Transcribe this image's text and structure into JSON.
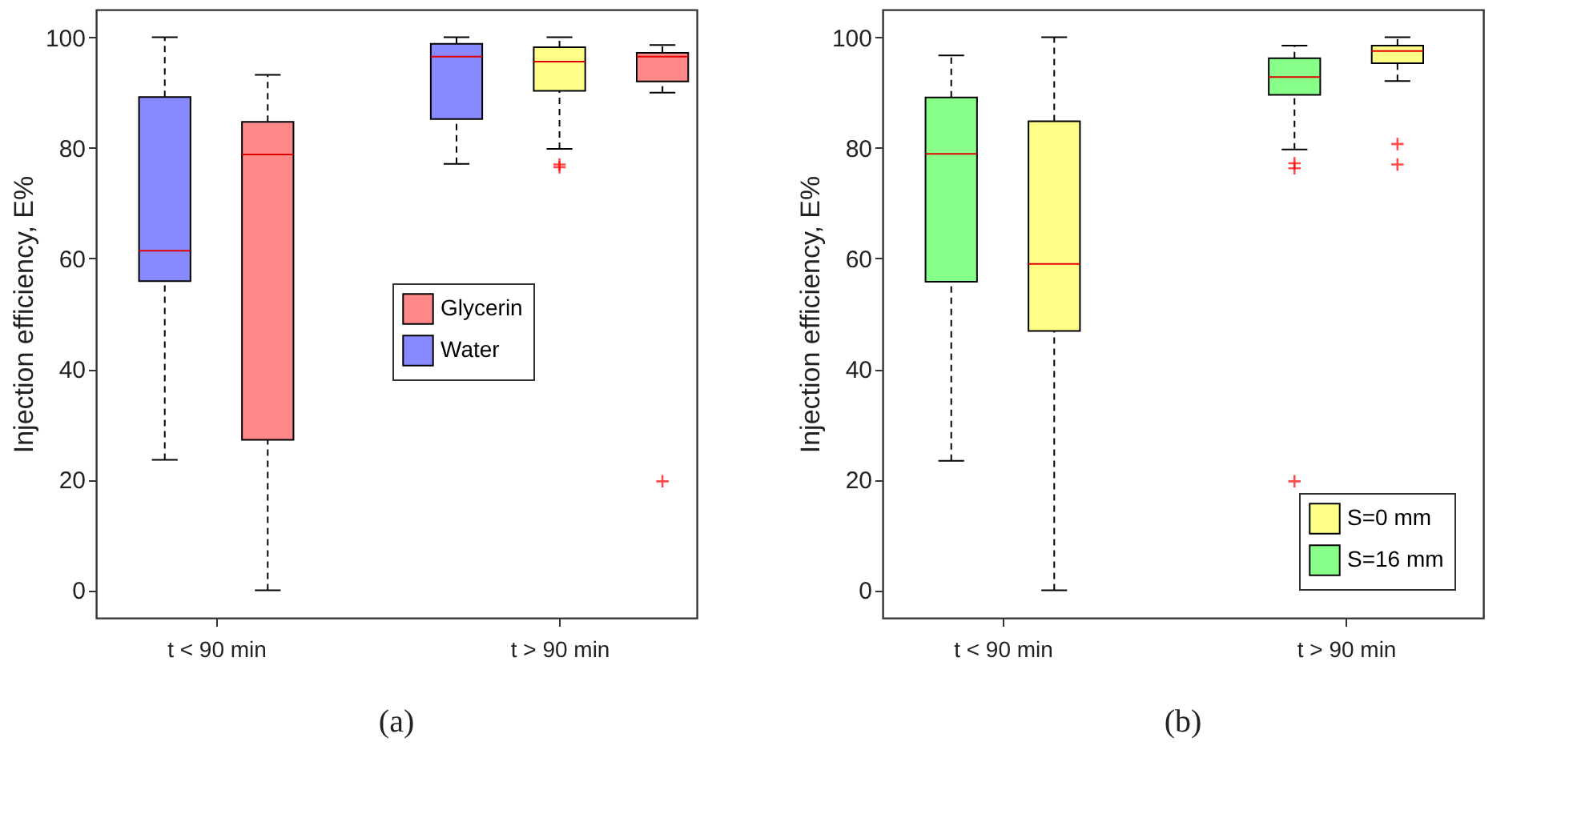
{
  "chart_data": [
    {
      "type": "box",
      "categories": [
        "t < 90 min",
        "t > 90 min"
      ],
      "ylabel": "Injection efficiency, E%",
      "ylim": [
        -5,
        105
      ],
      "yticks": [
        0,
        20,
        40,
        60,
        80,
        100
      ],
      "grid": false,
      "legend": "right",
      "annotations": [
        "(a)"
      ],
      "series": [
        {
          "name": "Water",
          "color": "#8888ff",
          "boxes": [
            {
              "low": 23.6,
              "q1": 55.9,
              "median": 61.4,
              "q3": 89.2,
              "high": 100
            },
            {
              "low": 77.1,
              "q1": 85.2,
              "median": 96.5,
              "q3": 98.8,
              "high": 100
            }
          ]
        },
        {
          "color": "#ffff88",
          "boxes": [
            null,
            {
              "low": 79.8,
              "q1": 90.3,
              "median": 95.6,
              "q3": 98.2,
              "high": 100,
              "outliers": [
                77,
                76.5
              ]
            }
          ]
        },
        {
          "name": "Glycerin",
          "color": "#ff8888",
          "boxes": [
            {
              "low": 0,
              "q1": 27.2,
              "median": 78.8,
              "q3": 84.7,
              "high": 93.2
            },
            {
              "low": 90,
              "q1": 92,
              "median": 96.5,
              "q3": 97.2,
              "high": 98.6,
              "outliers": [
                19.7
              ]
            }
          ]
        }
      ]
    },
    {
      "type": "box",
      "categories": [
        "t < 90 min",
        "t > 90 min"
      ],
      "ylabel": "Injection efficiency, E%",
      "ylim": [
        -5,
        105
      ],
      "yticks": [
        0,
        20,
        40,
        60,
        80,
        100
      ],
      "grid": false,
      "legend": "bottom right",
      "annotations": [
        "(b)"
      ],
      "series": [
        {
          "name": "S=16 mm",
          "color": "#88ff88",
          "boxes": [
            {
              "low": 23.4,
              "q1": 55.8,
              "median": 78.9,
              "q3": 89.1,
              "high": 96.7
            },
            {
              "low": 79.7,
              "q1": 89.6,
              "median": 92.8,
              "q3": 96.2,
              "high": 98.5,
              "outliers": [
                77.2,
                76.3,
                19.7
              ]
            }
          ]
        },
        {
          "name": "S=0 mm",
          "color": "#ffff88",
          "boxes": [
            {
              "low": 0,
              "q1": 46.9,
              "median": 59,
              "q3": 84.8,
              "high": 100
            },
            {
              "low": 92.1,
              "q1": 95.3,
              "median": 97.5,
              "q3": 98.5,
              "high": 100,
              "outliers": [
                80.7,
                77
              ]
            }
          ]
        }
      ]
    }
  ]
}
